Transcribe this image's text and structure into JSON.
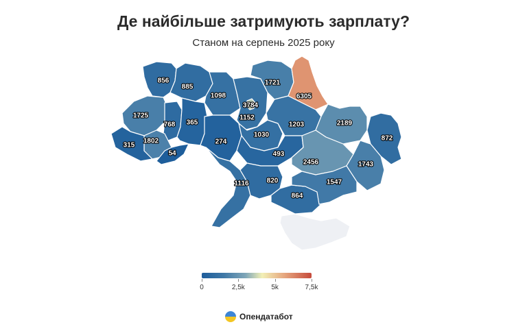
{
  "header": {
    "title": "Де найбільше затримують зарплату?",
    "subtitle": "Станом на серпень 2025 року"
  },
  "map_data": {
    "type": "choropleth",
    "regions": [
      {
        "key": "volyn",
        "value": 856
      },
      {
        "key": "rivne",
        "value": 885
      },
      {
        "key": "zhytomyr",
        "value": 1098
      },
      {
        "key": "kyiv_oblast",
        "value": 1152
      },
      {
        "key": "kyiv_city",
        "value": 3784
      },
      {
        "key": "chernihiv",
        "value": 1721
      },
      {
        "key": "sumy",
        "value": 6305
      },
      {
        "key": "lviv",
        "value": 1725
      },
      {
        "key": "ternopil",
        "value": 768
      },
      {
        "key": "khmelnytskyi",
        "value": 365
      },
      {
        "key": "vinnytsia",
        "value": 274
      },
      {
        "key": "ivano_frankivsk",
        "value": 1802
      },
      {
        "key": "zakarpattia",
        "value": 315
      },
      {
        "key": "chernivtsi",
        "value": 54
      },
      {
        "key": "cherkasy",
        "value": 1030
      },
      {
        "key": "poltava",
        "value": 1203
      },
      {
        "key": "kharkiv",
        "value": 2189
      },
      {
        "key": "luhansk",
        "value": 872
      },
      {
        "key": "kirovohrad",
        "value": 493
      },
      {
        "key": "dnipropetrovsk",
        "value": 2456
      },
      {
        "key": "donetsk",
        "value": 1743
      },
      {
        "key": "odesa",
        "value": 1116
      },
      {
        "key": "mykolaiv",
        "value": 820
      },
      {
        "key": "kherson",
        "value": 864
      },
      {
        "key": "zaporizhzhia",
        "value": 1547
      },
      {
        "key": "crimea",
        "value": null
      }
    ],
    "no_data_color": "#eef0f4",
    "color_scale": {
      "min": 0,
      "max": 7500,
      "stops": [
        "#1d5d9b",
        "#3f78a6",
        "#7fa6b8",
        "#f2f0b6",
        "#e6a77f",
        "#c64a3b"
      ]
    }
  },
  "legend": {
    "ticks": [
      {
        "value": 0,
        "label": "0"
      },
      {
        "value": 2500,
        "label": "2,5k"
      },
      {
        "value": 5000,
        "label": "5k"
      },
      {
        "value": 7500,
        "label": "7,5k"
      }
    ]
  },
  "brand": {
    "name": "Опендатабот",
    "logo_colors": [
      "#3d86d6",
      "#f3c623"
    ]
  }
}
